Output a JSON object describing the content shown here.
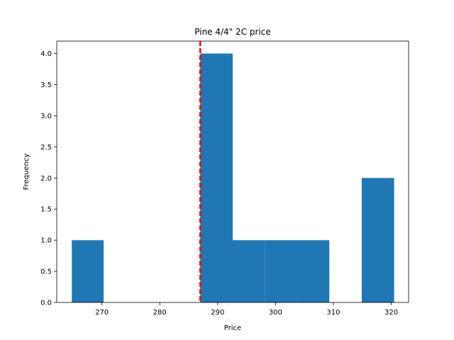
{
  "chart_data": {
    "type": "bar",
    "title": "Pine 4/4\" 2C price",
    "xlabel": "Price",
    "ylabel": "Frequency",
    "xlim": [
      262.2,
      323.0
    ],
    "ylim": [
      0,
      4.2
    ],
    "bins": [
      {
        "x0": 264.8,
        "x1": 270.3,
        "count": 1
      },
      {
        "x0": 270.3,
        "x1": 275.9,
        "count": 0
      },
      {
        "x0": 275.9,
        "x1": 281.5,
        "count": 0
      },
      {
        "x0": 281.5,
        "x1": 287.0,
        "count": 0
      },
      {
        "x0": 287.0,
        "x1": 292.6,
        "count": 4
      },
      {
        "x0": 292.6,
        "x1": 298.2,
        "count": 1
      },
      {
        "x0": 298.2,
        "x1": 303.7,
        "count": 1
      },
      {
        "x0": 303.7,
        "x1": 309.3,
        "count": 1
      },
      {
        "x0": 309.3,
        "x1": 314.9,
        "count": 0
      },
      {
        "x0": 314.9,
        "x1": 320.5,
        "count": 2
      }
    ],
    "reference_line": {
      "x": 287.0,
      "color": "#ff0000",
      "style": "dashed"
    },
    "bar_color": "#1f77b4",
    "xticks": [
      270,
      280,
      290,
      300,
      310,
      320
    ],
    "yticks": [
      0.0,
      0.5,
      1.0,
      1.5,
      2.0,
      2.5,
      3.0,
      3.5,
      4.0
    ],
    "xtick_labels": [
      "270",
      "280",
      "290",
      "300",
      "310",
      "320"
    ],
    "ytick_labels": [
      "0.0",
      "0.5",
      "1.0",
      "1.5",
      "2.0",
      "2.5",
      "3.0",
      "3.5",
      "4.0"
    ],
    "grid": false,
    "legend": "none"
  }
}
